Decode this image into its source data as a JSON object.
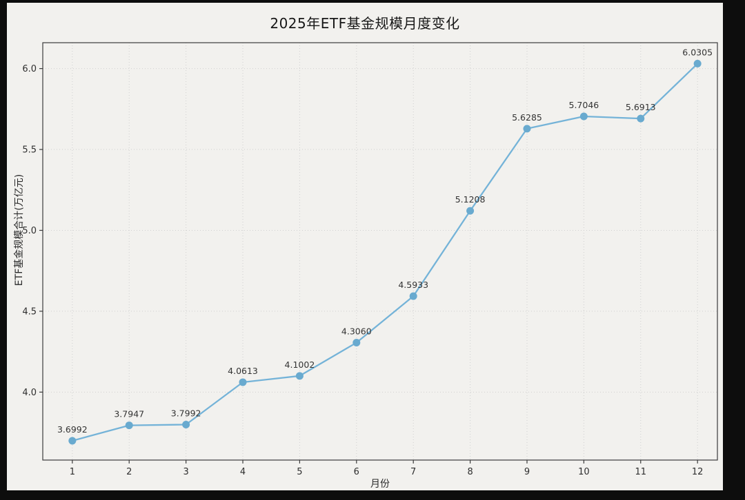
{
  "chart_data": {
    "type": "line",
    "title": "2025年ETF基金规模月度变化",
    "xlabel": "月份",
    "ylabel": "ETF基金规模合计(万亿元)",
    "x": [
      1,
      2,
      3,
      4,
      5,
      6,
      7,
      8,
      9,
      10,
      11,
      12
    ],
    "values": [
      3.6992,
      3.7947,
      3.7992,
      4.0613,
      4.1002,
      4.306,
      4.5933,
      5.1208,
      5.6285,
      5.7046,
      5.6913,
      6.0305
    ],
    "point_labels": [
      "3.6992",
      "3.7947",
      "3.7992",
      "4.0613",
      "4.1002",
      "4.3060",
      "4.5933",
      "5.1208",
      "5.6285",
      "5.7046",
      "5.6913",
      "6.0305"
    ],
    "x_tick_labels": [
      "1",
      "2",
      "3",
      "4",
      "5",
      "6",
      "7",
      "8",
      "9",
      "10",
      "11",
      "12"
    ],
    "y_ticks": [
      4.0,
      4.5,
      5.0,
      5.5,
      6.0
    ],
    "y_tick_labels": [
      "4.0",
      "4.5",
      "5.0",
      "5.5",
      "6.0"
    ],
    "xlim": [
      0.48,
      12.35
    ],
    "ylim": [
      3.58,
      6.16
    ],
    "grid": true,
    "legend": "none",
    "line_color": "#74b3d8",
    "marker_color": "#69aacf",
    "grid_color": "#cfcfcf",
    "axis_color": "#3a3a3a",
    "text_color": "#2e2e2e",
    "background_color": "#f2f1ee",
    "frame_color": "#0d0d0d"
  }
}
